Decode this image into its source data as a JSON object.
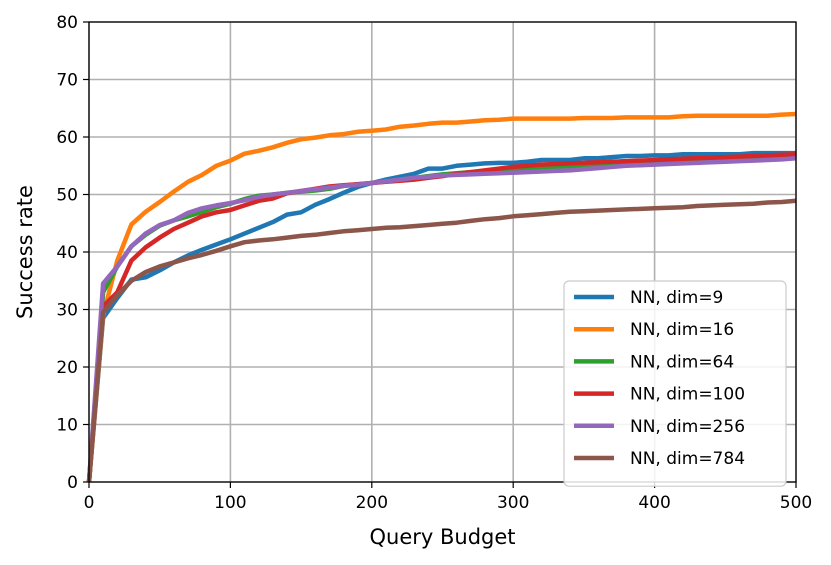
{
  "chart_data": {
    "type": "line",
    "title": "",
    "xlabel": "Query Budget",
    "ylabel": "Success rate",
    "xlim": [
      0,
      500
    ],
    "ylim": [
      0,
      80
    ],
    "xticks": [
      0,
      100,
      200,
      300,
      400,
      500
    ],
    "yticks": [
      0,
      10,
      20,
      30,
      40,
      50,
      60,
      70,
      80
    ],
    "grid": true,
    "legend_position": "lower-right",
    "x": [
      0,
      10,
      20,
      30,
      40,
      50,
      60,
      70,
      80,
      90,
      100,
      110,
      120,
      130,
      140,
      150,
      160,
      170,
      180,
      190,
      200,
      210,
      220,
      230,
      240,
      250,
      260,
      270,
      280,
      290,
      300,
      310,
      320,
      330,
      340,
      350,
      360,
      370,
      380,
      390,
      400,
      410,
      420,
      430,
      440,
      450,
      460,
      470,
      480,
      490,
      500
    ],
    "series": [
      {
        "name": "NN, dim=9",
        "color": "#1f77b4",
        "values": [
          0,
          28.5,
          32.0,
          35.2,
          35.6,
          36.8,
          38.2,
          39.4,
          40.4,
          41.3,
          42.2,
          43.2,
          44.2,
          45.2,
          46.5,
          46.9,
          48.2,
          49.2,
          50.3,
          51.3,
          52.0,
          52.6,
          53.1,
          53.6,
          54.5,
          54.5,
          55.0,
          55.2,
          55.4,
          55.5,
          55.5,
          55.7,
          56.0,
          56.0,
          56.0,
          56.3,
          56.3,
          56.5,
          56.7,
          56.7,
          56.8,
          56.8,
          57.0,
          57.0,
          57.0,
          57.0,
          57.0,
          57.2,
          57.2,
          57.2,
          57.2
        ]
      },
      {
        "name": "NN, dim=16",
        "color": "#ff7f0e",
        "values": [
          0,
          29.0,
          38.5,
          44.8,
          47.0,
          48.7,
          50.5,
          52.2,
          53.4,
          55.0,
          55.9,
          57.1,
          57.6,
          58.2,
          59.0,
          59.6,
          59.9,
          60.3,
          60.5,
          60.9,
          61.1,
          61.3,
          61.8,
          62.0,
          62.3,
          62.5,
          62.5,
          62.7,
          62.9,
          63.0,
          63.2,
          63.2,
          63.2,
          63.2,
          63.2,
          63.3,
          63.3,
          63.3,
          63.4,
          63.4,
          63.4,
          63.4,
          63.6,
          63.7,
          63.7,
          63.7,
          63.7,
          63.7,
          63.7,
          63.9,
          64.0
        ]
      },
      {
        "name": "NN, dim=64",
        "color": "#2ca02c",
        "values": [
          0,
          33.0,
          37.5,
          41.0,
          43.0,
          44.6,
          45.5,
          46.2,
          47.0,
          47.8,
          48.4,
          49.2,
          49.8,
          50.0,
          50.3,
          50.5,
          50.7,
          51.0,
          51.5,
          51.8,
          52.0,
          52.3,
          52.6,
          52.9,
          53.2,
          53.5,
          53.7,
          53.9,
          54.1,
          54.3,
          54.4,
          54.5,
          54.6,
          54.7,
          54.8,
          54.9,
          55.0,
          55.1,
          55.2,
          55.3,
          55.4,
          55.5,
          55.6,
          55.7,
          55.8,
          55.9,
          56.0,
          56.1,
          56.2,
          56.3,
          56.4
        ]
      },
      {
        "name": "NN, dim=100",
        "color": "#d62728",
        "values": [
          0,
          30.5,
          33.0,
          38.5,
          40.8,
          42.5,
          44.0,
          45.1,
          46.2,
          46.9,
          47.3,
          48.1,
          48.9,
          49.3,
          50.2,
          50.6,
          51.0,
          51.4,
          51.6,
          51.8,
          52.0,
          52.2,
          52.4,
          52.6,
          52.9,
          53.2,
          53.6,
          53.9,
          54.2,
          54.5,
          54.8,
          55.0,
          55.2,
          55.3,
          55.4,
          55.5,
          55.6,
          55.7,
          55.8,
          55.9,
          56.0,
          56.1,
          56.2,
          56.3,
          56.4,
          56.5,
          56.6,
          56.7,
          56.8,
          56.9,
          57.0
        ]
      },
      {
        "name": "NN, dim=256",
        "color": "#9467bd",
        "values": [
          0,
          34.5,
          37.5,
          41.0,
          43.2,
          44.7,
          45.5,
          46.8,
          47.6,
          48.1,
          48.5,
          49.0,
          49.6,
          50.0,
          50.3,
          50.6,
          50.9,
          51.2,
          51.5,
          51.7,
          52.0,
          52.3,
          52.6,
          52.9,
          53.1,
          53.3,
          53.4,
          53.5,
          53.6,
          53.7,
          53.8,
          53.9,
          54.0,
          54.1,
          54.2,
          54.4,
          54.6,
          54.8,
          55.0,
          55.1,
          55.2,
          55.3,
          55.4,
          55.5,
          55.6,
          55.7,
          55.8,
          55.9,
          56.0,
          56.1,
          56.3
        ]
      },
      {
        "name": "NN, dim=784",
        "color": "#8c564b",
        "values": [
          0,
          29.5,
          32.5,
          35.0,
          36.5,
          37.5,
          38.2,
          38.9,
          39.5,
          40.2,
          41.0,
          41.7,
          42.0,
          42.2,
          42.5,
          42.8,
          43.0,
          43.3,
          43.6,
          43.8,
          44.0,
          44.2,
          44.3,
          44.5,
          44.7,
          44.9,
          45.1,
          45.4,
          45.7,
          45.9,
          46.2,
          46.4,
          46.6,
          46.8,
          47.0,
          47.1,
          47.2,
          47.3,
          47.4,
          47.5,
          47.6,
          47.7,
          47.8,
          48.0,
          48.1,
          48.2,
          48.3,
          48.4,
          48.6,
          48.7,
          48.9
        ]
      }
    ]
  }
}
